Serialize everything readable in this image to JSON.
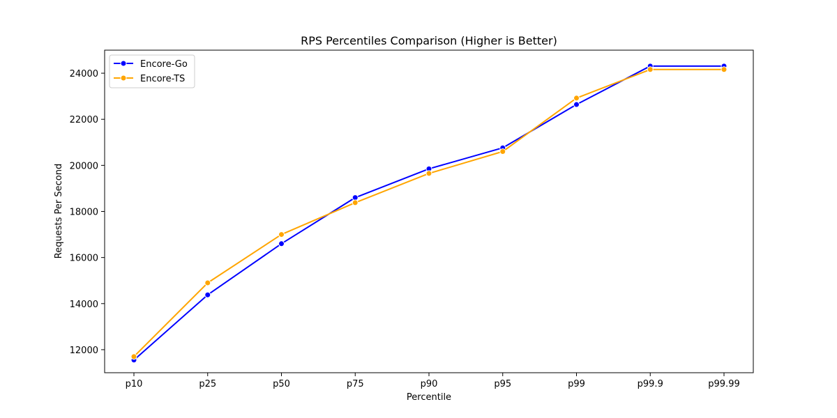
{
  "chart_data": {
    "type": "line",
    "title": "RPS Percentiles Comparison (Higher is Better)",
    "xlabel": "Percentile",
    "ylabel": "Requests Per Second",
    "categories": [
      "p10",
      "p25",
      "p50",
      "p75",
      "p90",
      "p95",
      "p99",
      "p99.9",
      "p99.99"
    ],
    "ylim": [
      11000,
      25000
    ],
    "yticks": [
      12000,
      14000,
      16000,
      18000,
      20000,
      22000,
      24000
    ],
    "grid": false,
    "legend_position": "top-left",
    "series": [
      {
        "name": "Encore-Go",
        "color": "#0000ff",
        "marker": "circle",
        "values": [
          11550,
          14380,
          16600,
          18600,
          19850,
          20760,
          22640,
          24310,
          24310
        ]
      },
      {
        "name": "Encore-TS",
        "color": "#ffa500",
        "marker": "circle",
        "values": [
          11700,
          14900,
          17000,
          18380,
          19650,
          20600,
          22920,
          24160,
          24160
        ]
      }
    ]
  }
}
